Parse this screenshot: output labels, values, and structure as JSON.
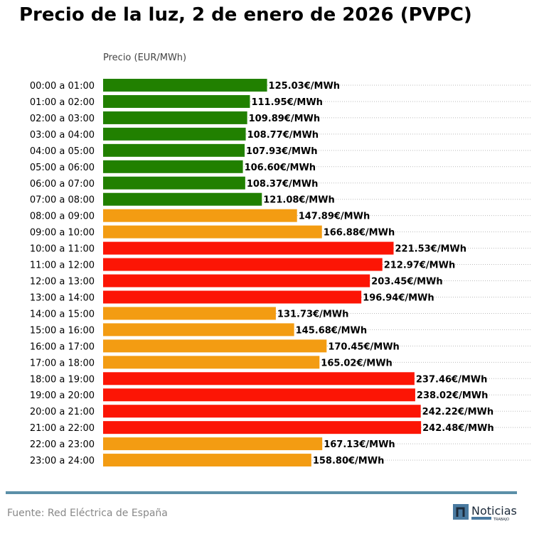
{
  "chart_data": {
    "type": "bar",
    "orientation": "horizontal",
    "title": "Precio de la luz, 2 de enero de 2026 (PVPC)",
    "xlabel": "Precio (EUR/MWh)",
    "ylabel": "",
    "grid": "horizontal dotted",
    "unit_suffix": "€/MWh",
    "categories": [
      "00:00 a 01:00",
      "01:00 a 02:00",
      "02:00 a 03:00",
      "03:00 a 04:00",
      "04:00 a 05:00",
      "05:00 a 06:00",
      "06:00 a 07:00",
      "07:00 a 08:00",
      "08:00 a 09:00",
      "09:00 a 10:00",
      "10:00 a 11:00",
      "11:00 a 12:00",
      "12:00 a 13:00",
      "13:00 a 14:00",
      "14:00 a 15:00",
      "15:00 a 16:00",
      "16:00 a 17:00",
      "17:00 a 18:00",
      "18:00 a 19:00",
      "19:00 a 20:00",
      "20:00 a 21:00",
      "21:00 a 22:00",
      "22:00 a 23:00",
      "23:00 a 24:00"
    ],
    "values": [
      125.03,
      111.95,
      109.89,
      108.77,
      107.93,
      106.6,
      108.37,
      121.08,
      147.89,
      166.88,
      221.53,
      212.97,
      203.45,
      196.94,
      131.73,
      145.68,
      170.45,
      165.02,
      237.46,
      238.02,
      242.22,
      242.48,
      167.13,
      158.8
    ],
    "levels": [
      "low",
      "low",
      "low",
      "low",
      "low",
      "low",
      "low",
      "low",
      "mid",
      "mid",
      "high",
      "high",
      "high",
      "high",
      "mid",
      "mid",
      "mid",
      "mid",
      "high",
      "high",
      "high",
      "high",
      "mid",
      "mid"
    ],
    "xlim": [
      0,
      327
    ],
    "colors": {
      "low": "#218000",
      "mid": "#f39c12",
      "high": "#fc1505"
    }
  },
  "footer": {
    "source": "Fuente: Red Eléctrica de España",
    "logo_text": "Noticias",
    "logo_subtext": "TRABAJO"
  }
}
